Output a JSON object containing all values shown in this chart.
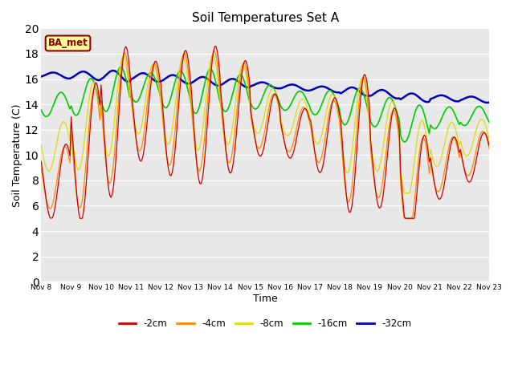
{
  "title": "Soil Temperatures Set A",
  "xlabel": "Time",
  "ylabel": "Soil Temperature (C)",
  "annotation": "BA_met",
  "ylim": [
    0,
    20
  ],
  "colors": {
    "d2cm": "#cc0000",
    "d4cm": "#ff8800",
    "d8cm": "#dddd00",
    "d16cm": "#00cc00",
    "d32cm": "#0000bb"
  },
  "legend_labels": [
    "-2cm",
    "-4cm",
    "-8cm",
    "-16cm",
    "-32cm"
  ],
  "background_color": "#e8e8e8",
  "plot_bg": "#dcdcdc",
  "n_days": 15,
  "pts_per_day": 24
}
